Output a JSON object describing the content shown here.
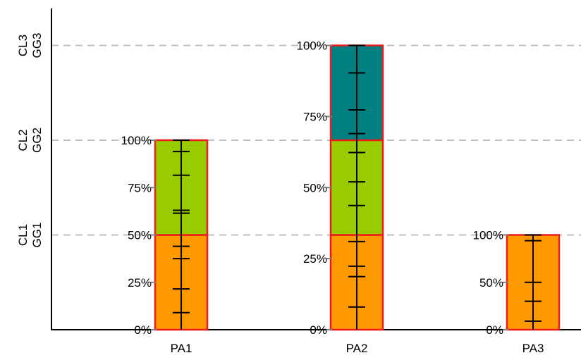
{
  "chart_data": {
    "type": "bar",
    "stacked": true,
    "grid": "horizontal dashed at GG levels",
    "categories": [
      "PA1",
      "PA2",
      "PA3"
    ],
    "y_levels": [
      {
        "value": 1,
        "label_top": "CL1",
        "label_bottom": "GG1"
      },
      {
        "value": 2,
        "label_top": "CL2",
        "label_bottom": "GG2"
      },
      {
        "value": 3,
        "label_top": "CL3",
        "label_bottom": "GG3"
      }
    ],
    "ylim": [
      0,
      3.5
    ],
    "bars": [
      {
        "category": "PA1",
        "total": 2,
        "segments": [
          {
            "from": 0,
            "to": 1,
            "color": "#ff9900"
          },
          {
            "from": 1,
            "to": 2,
            "color": "#99cc00"
          }
        ],
        "percent_ticks": [
          {
            "value": 0,
            "label": "0%"
          },
          {
            "value": 0.5,
            "label": "25%"
          },
          {
            "value": 1,
            "label": "50%"
          },
          {
            "value": 1.5,
            "label": "75%"
          },
          {
            "value": 2,
            "label": "100%"
          }
        ],
        "marks": [
          0.18,
          0.43,
          0.75,
          0.88,
          1.23,
          1.26,
          1.63,
          1.88,
          2.0
        ]
      },
      {
        "category": "PA2",
        "total": 3,
        "segments": [
          {
            "from": 0,
            "to": 1,
            "color": "#ff9900"
          },
          {
            "from": 1,
            "to": 2,
            "color": "#99cc00"
          },
          {
            "from": 2,
            "to": 3,
            "color": "#008080"
          }
        ],
        "percent_ticks": [
          {
            "value": 0,
            "label": "0%"
          },
          {
            "value": 0.75,
            "label": "25%"
          },
          {
            "value": 1.5,
            "label": "50%"
          },
          {
            "value": 2.25,
            "label": "75%"
          },
          {
            "value": 3,
            "label": "100%"
          }
        ],
        "marks": [
          0.24,
          0.56,
          0.67,
          0.93,
          1.31,
          1.56,
          1.87,
          2.07,
          2.32,
          2.71,
          3.0
        ]
      },
      {
        "category": "PA3",
        "total": 1,
        "segments": [
          {
            "from": 0,
            "to": 1,
            "color": "#ff9900"
          }
        ],
        "percent_ticks": [
          {
            "value": 0,
            "label": "0%"
          },
          {
            "value": 0.5,
            "label": "50%"
          },
          {
            "value": 1,
            "label": "100%"
          }
        ],
        "marks": [
          0.09,
          0.3,
          0.5,
          0.94,
          1.0
        ]
      }
    ],
    "colors": {
      "bar_border": "#ee1c1c",
      "grid": "#c0c0c0",
      "axis": "#000000"
    }
  }
}
